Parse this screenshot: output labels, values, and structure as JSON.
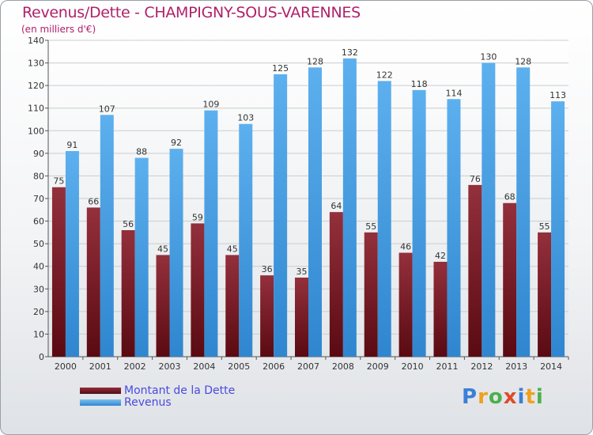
{
  "chart_data": {
    "type": "bar",
    "title": "Revenus/Dette - CHAMPIGNY-SOUS-VARENNES",
    "subtitle": "(en milliers d'€)",
    "xlabel": "",
    "ylabel": "",
    "ylim": [
      0,
      140
    ],
    "yticks": [
      "0",
      "10",
      "20",
      "30",
      "40",
      "50",
      "60",
      "70",
      "80",
      "90",
      "100",
      "110",
      "120",
      "130",
      "140"
    ],
    "grid": true,
    "categories": [
      "2000",
      "2001",
      "2002",
      "2003",
      "2004",
      "2005",
      "2006",
      "2007",
      "2008",
      "2009",
      "2010",
      "2011",
      "2012",
      "2013",
      "2014"
    ],
    "series": [
      {
        "name": "Montant de la Dette",
        "color": "#7a1f2b",
        "values": [
          75,
          66,
          56,
          45,
          59,
          45,
          36,
          35,
          64,
          55,
          46,
          42,
          76,
          68,
          55
        ],
        "labels": [
          "75",
          "66",
          "56",
          "45",
          "59",
          "45",
          "36",
          "35",
          "64",
          "55",
          "46",
          "42",
          "76",
          "68",
          "55"
        ]
      },
      {
        "name": "Revenus",
        "color": "#4aa3e8",
        "values": [
          91,
          107,
          88,
          92,
          109,
          103,
          125,
          128,
          132,
          122,
          118,
          114,
          130,
          128,
          113
        ],
        "labels": [
          "91",
          "107",
          "88",
          "92",
          "109",
          "103",
          "125",
          "128",
          "132",
          "122",
          "118",
          "114",
          "130",
          "128",
          "113"
        ]
      }
    ],
    "legend_position": "bottom-left"
  },
  "legend": {
    "items": [
      {
        "label": "Montant de la Dette",
        "color": "#7a1f2b"
      },
      {
        "label": "Revenus",
        "color": "#4aa3e8"
      }
    ]
  },
  "logo": {
    "letters": [
      "P",
      "r",
      "o",
      "x",
      "i",
      "t",
      "i"
    ],
    "colors": [
      "#3b7fd6",
      "#f0a020",
      "#4cb04c",
      "#e04a2a",
      "#3b7fd6",
      "#f0a020",
      "#4cb04c"
    ]
  }
}
